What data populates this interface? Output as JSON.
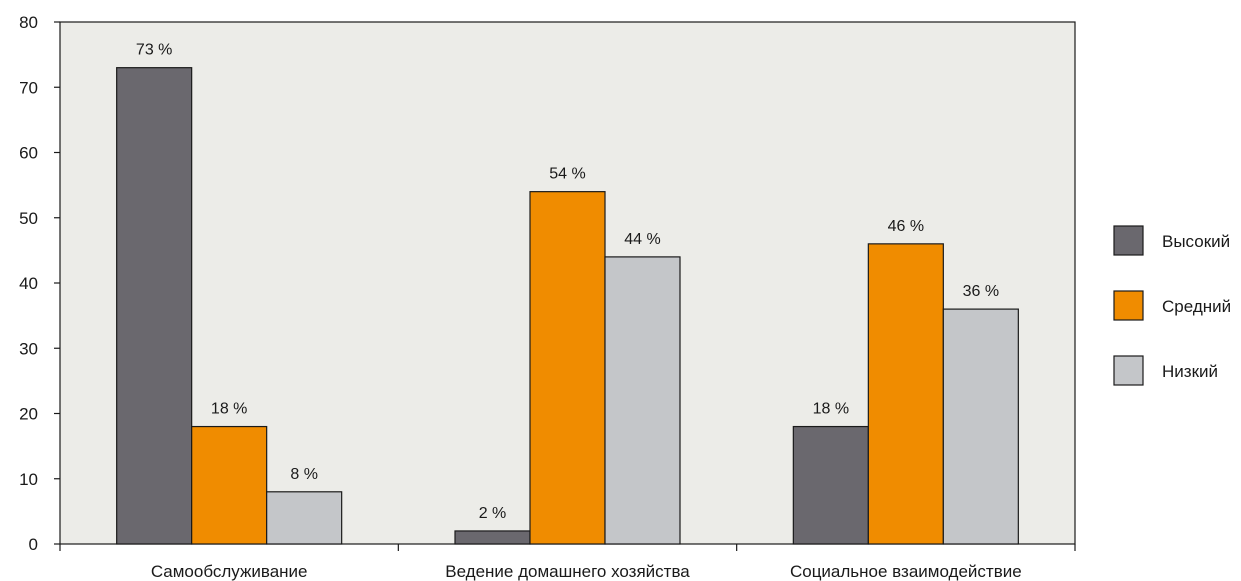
{
  "chart_data": {
    "type": "bar",
    "categories": [
      "Самообслуживание",
      "Ведение домашнего хозяйства",
      "Социальное взаимодействие"
    ],
    "series": [
      {
        "name": "Высокий",
        "values": [
          73,
          2,
          18
        ],
        "labels": [
          "73 %",
          "2 %",
          "18 %"
        ],
        "color": "#6a686e"
      },
      {
        "name": "Средний",
        "values": [
          18,
          54,
          46
        ],
        "labels": [
          "18 %",
          "54 %",
          "46 %"
        ],
        "color": "#f08c00"
      },
      {
        "name": "Низкий",
        "values": [
          8,
          44,
          36
        ],
        "labels": [
          "8 %",
          "44 %",
          "36 %"
        ],
        "color": "#c4c6c9"
      }
    ],
    "ylim": [
      0,
      80
    ],
    "yticks": [
      0,
      10,
      20,
      30,
      40,
      50,
      60,
      70,
      80
    ],
    "grid": false,
    "legend": "right",
    "plot_background": "#ecece8"
  }
}
